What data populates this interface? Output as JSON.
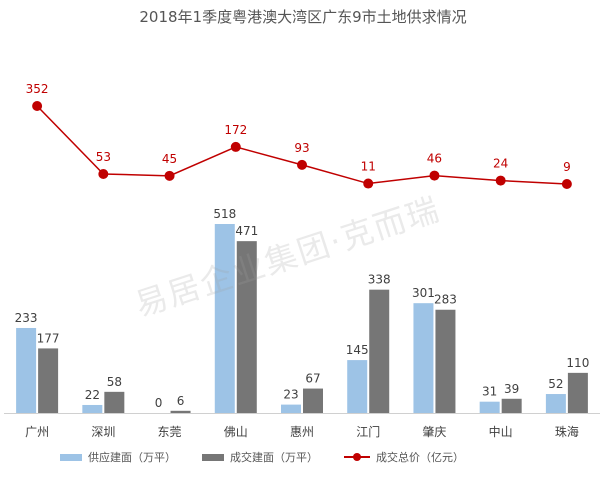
{
  "title": "2018年1季度粤港澳大湾区广东9市土地供求情况",
  "watermark": "易居企业集团·克而瑞",
  "colors": {
    "supply": "#9dc3e6",
    "deal": "#767676",
    "price": "#c00000"
  },
  "chart_data": {
    "type": "bar",
    "title": "2018年1季度粤港澳大湾区广东9市土地供求情况",
    "categories": [
      "广州",
      "深圳",
      "东莞",
      "佛山",
      "惠州",
      "江门",
      "肇庆",
      "中山",
      "珠海"
    ],
    "series": [
      {
        "name": "供应建面（万平）",
        "type": "bar",
        "values": [
          233,
          22,
          0,
          518,
          23,
          145,
          301,
          31,
          52
        ]
      },
      {
        "name": "成交建面（万平）",
        "type": "bar",
        "values": [
          177,
          58,
          6,
          471,
          67,
          338,
          283,
          39,
          110
        ]
      },
      {
        "name": "成交总价（亿元）",
        "type": "line",
        "values": [
          352,
          53,
          45,
          172,
          93,
          11,
          46,
          24,
          9
        ]
      }
    ],
    "legend_position": "bottom",
    "grid": false
  }
}
